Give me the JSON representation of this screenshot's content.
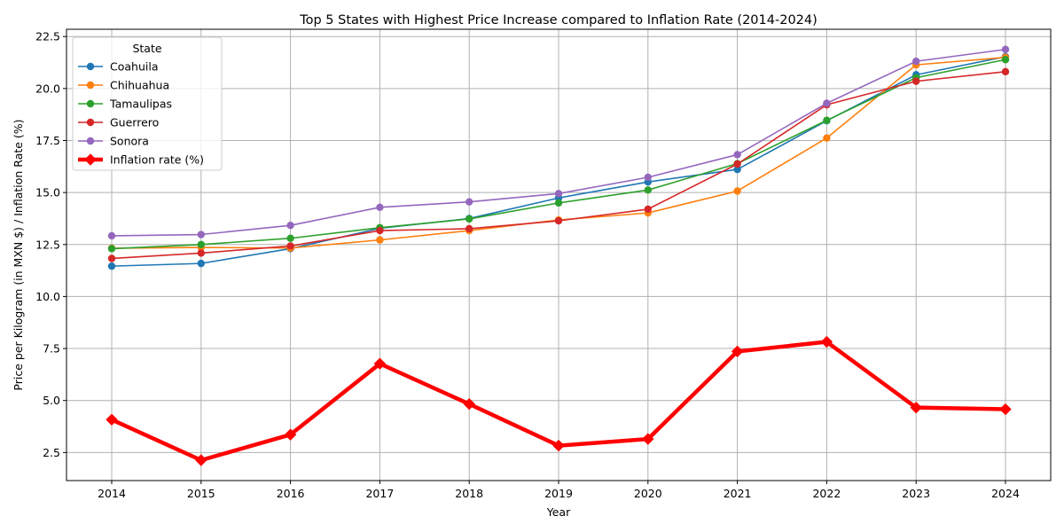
{
  "chart_data": {
    "type": "line",
    "title": "Top 5 States with Highest Price Increase compared to Inflation Rate (2014-2024)",
    "xlabel": "Year",
    "ylabel": "Price per Kilogram (in MXN $) / Inflation Rate (%)",
    "x": [
      "2014",
      "2015",
      "2016",
      "2017",
      "2018",
      "2019",
      "2020",
      "2021",
      "2022",
      "2023",
      "2024"
    ],
    "y_ticks": [
      "2.5",
      "5.0",
      "7.5",
      "10.0",
      "12.5",
      "15.0",
      "17.5",
      "20.0",
      "22.5"
    ],
    "ylim": [
      1.15,
      22.85
    ],
    "grid": true,
    "legend": {
      "title": "State",
      "placement": "top-left"
    },
    "series": [
      {
        "name": "Coahuila",
        "color": "#1f77b4",
        "marker": "circle",
        "values": [
          11.46,
          11.59,
          12.3,
          13.28,
          13.75,
          14.74,
          15.51,
          16.11,
          18.45,
          20.66,
          21.53
        ]
      },
      {
        "name": "Chihuahua",
        "color": "#ff7f0e",
        "marker": "circle",
        "values": [
          12.32,
          12.36,
          12.33,
          12.72,
          13.17,
          13.68,
          14.02,
          15.07,
          17.62,
          21.14,
          21.5
        ]
      },
      {
        "name": "Tamaulipas",
        "color": "#2ca02c",
        "marker": "circle",
        "values": [
          12.3,
          12.5,
          12.8,
          13.31,
          13.73,
          14.5,
          15.12,
          16.39,
          18.47,
          20.52,
          21.39
        ]
      },
      {
        "name": "Guerrero",
        "color": "#d62728",
        "marker": "circle",
        "values": [
          11.83,
          12.09,
          12.43,
          13.17,
          13.26,
          13.64,
          14.2,
          16.37,
          19.22,
          20.35,
          20.81
        ]
      },
      {
        "name": "Sonora",
        "color": "#9467bd",
        "marker": "circle",
        "values": [
          12.92,
          12.98,
          13.42,
          14.29,
          14.55,
          14.95,
          15.73,
          16.82,
          19.29,
          21.31,
          21.88
        ]
      },
      {
        "name": "Inflation rate (%)",
        "color": "#ff0000",
        "marker": "diamond",
        "bold": true,
        "values": [
          4.08,
          2.13,
          3.36,
          6.77,
          4.83,
          2.83,
          3.15,
          7.36,
          7.82,
          4.66,
          4.58
        ]
      }
    ]
  }
}
